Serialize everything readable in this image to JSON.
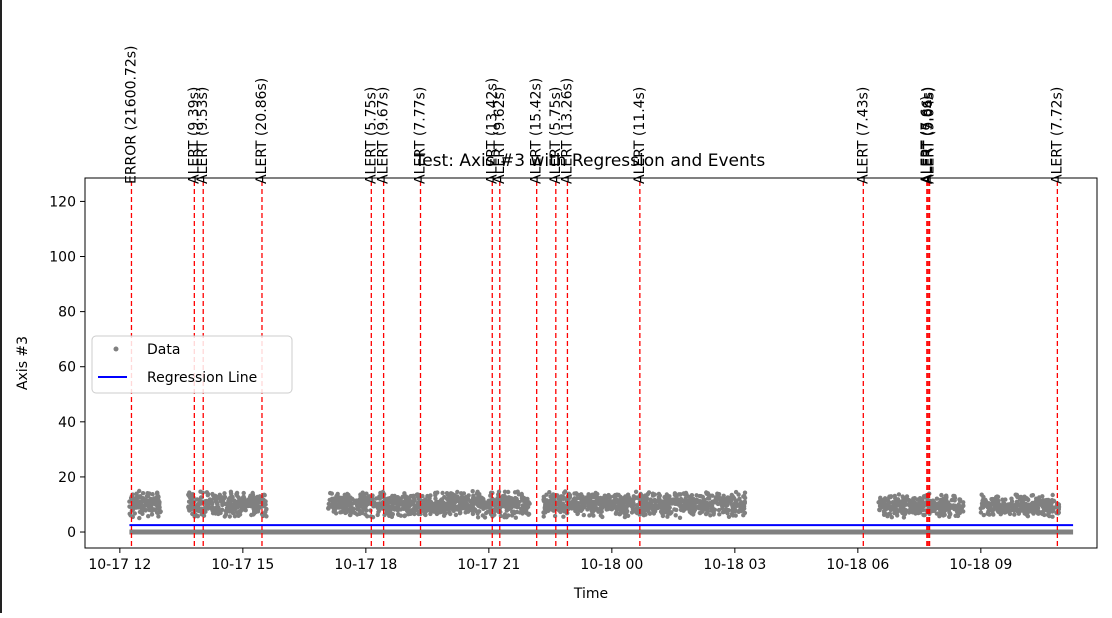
{
  "chart_data": {
    "type": "scatter",
    "title": "Test: Axis #3 with Regression and Events",
    "xlabel": "Time",
    "ylabel": "Axis #3",
    "xlim": [
      "2023-10-17 11:09",
      "2023-10-18 11:50"
    ],
    "ylim": [
      -5.8,
      128.5
    ],
    "x_ticks": [
      {
        "t": "2023-10-17 12:00",
        "label": "10-17 12"
      },
      {
        "t": "2023-10-17 15:00",
        "label": "10-17 15"
      },
      {
        "t": "2023-10-17 18:00",
        "label": "10-17 18"
      },
      {
        "t": "2023-10-17 21:00",
        "label": "10-17 21"
      },
      {
        "t": "2023-10-18 00:00",
        "label": "10-18 00"
      },
      {
        "t": "2023-10-18 03:00",
        "label": "10-18 03"
      },
      {
        "t": "2023-10-18 06:00",
        "label": "10-18 06"
      },
      {
        "t": "2023-10-18 09:00",
        "label": "10-18 09"
      }
    ],
    "y_ticks": [
      0,
      20,
      40,
      60,
      80,
      100,
      120
    ],
    "grid": false,
    "legend": {
      "position": "center-left",
      "entries": [
        "Data",
        "Regression Line"
      ]
    },
    "colors": {
      "data": "#808080",
      "regression": "#0000ff",
      "event": "#ff0000"
    },
    "data_segments": [
      {
        "start": "2023-10-17 12:14",
        "end": "2023-10-17 13:00",
        "y_min": 5,
        "y_max": 15
      },
      {
        "start": "2023-10-17 13:40",
        "end": "2023-10-17 15:35",
        "y_min": 5,
        "y_max": 15
      },
      {
        "start": "2023-10-17 17:05",
        "end": "2023-10-17 22:00",
        "y_min": 5,
        "y_max": 15
      },
      {
        "start": "2023-10-17 22:20",
        "end": "2023-10-18 03:15",
        "y_min": 5,
        "y_max": 15
      },
      {
        "start": "2023-10-18 06:30",
        "end": "2023-10-18 08:35",
        "y_min": 5,
        "y_max": 14
      },
      {
        "start": "2023-10-18 09:00",
        "end": "2023-10-18 10:55",
        "y_min": 5,
        "y_max": 14
      }
    ],
    "baseline_points": {
      "start": "2023-10-17 12:14",
      "end": "2023-10-18 11:15",
      "y": 0
    },
    "regression": {
      "start": "2023-10-17 12:14",
      "end": "2023-10-18 11:15",
      "y_start": 2.5,
      "y_end": 2.5
    },
    "events": [
      {
        "t": "2023-10-17 12:17",
        "label": "ERROR (21600.72s)"
      },
      {
        "t": "2023-10-17 13:49",
        "label": "ALERT (9.39s)"
      },
      {
        "t": "2023-10-17 14:02",
        "label": "ALERT (9.53s)"
      },
      {
        "t": "2023-10-17 15:28",
        "label": "ALERT (20.86s)"
      },
      {
        "t": "2023-10-17 18:08",
        "label": "ALERT (5.75s)"
      },
      {
        "t": "2023-10-17 18:26",
        "label": "ALERT (9.67s)"
      },
      {
        "t": "2023-10-17 19:20",
        "label": "ALERT (7.77s)"
      },
      {
        "t": "2023-10-17 21:05",
        "label": "ALERT (13.42s)"
      },
      {
        "t": "2023-10-17 21:16",
        "label": "ALERT (9.62s)"
      },
      {
        "t": "2023-10-17 22:10",
        "label": "ALERT (15.42s)"
      },
      {
        "t": "2023-10-17 22:38",
        "label": "ALERT (5.75s)"
      },
      {
        "t": "2023-10-17 22:55",
        "label": "ALERT (13.26s)"
      },
      {
        "t": "2023-10-18 00:41",
        "label": "ALERT (11.4s)"
      },
      {
        "t": "2023-10-18 06:08",
        "label": "ALERT (7.43s)"
      },
      {
        "t": "2023-10-18 07:41",
        "label": "ALERT (7.6s)"
      },
      {
        "t": "2023-10-18 07:43",
        "label": "ALERT (5.86s)"
      },
      {
        "t": "2023-10-18 07:45",
        "label": "ALERT (9.04s)"
      },
      {
        "t": "2023-10-18 10:52",
        "label": "ALERT (7.72s)"
      }
    ]
  }
}
